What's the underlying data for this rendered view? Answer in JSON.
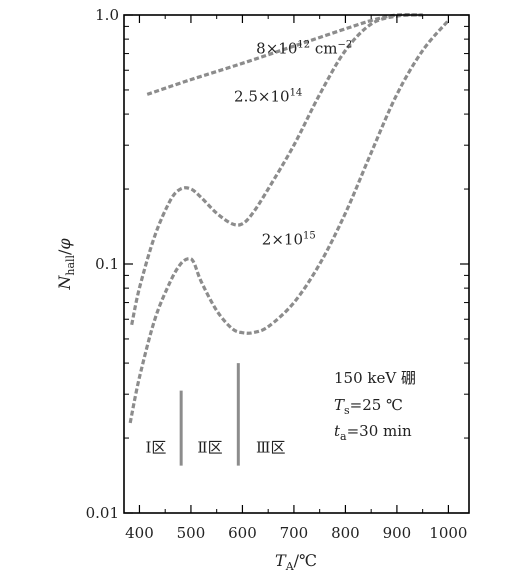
{
  "chart_data": {
    "type": "line",
    "xlabel": "T_A/℃",
    "ylabel": "N_hall/φ",
    "xlim": [
      370,
      1040
    ],
    "ylim": [
      0.01,
      1.0
    ],
    "yscale": "log",
    "xticks": [
      400,
      500,
      600,
      700,
      800,
      900,
      1000
    ],
    "xtick_labels": [
      "400",
      "500",
      "600",
      "700",
      "800",
      "900",
      "1000"
    ],
    "yticks": [
      0.01,
      0.1,
      1.0
    ],
    "ytick_labels": [
      "0.01",
      "0.1",
      "1.0"
    ],
    "grid": false,
    "series": [
      {
        "name": "8×10¹² cm⁻²",
        "x": [
          415,
          500,
          600,
          700,
          800,
          850,
          900,
          950
        ],
        "y": [
          0.48,
          0.55,
          0.64,
          0.75,
          0.88,
          0.95,
          1.0,
          1.0
        ]
      },
      {
        "name": "2.5×10¹⁴",
        "x": [
          385,
          400,
          430,
          460,
          480,
          500,
          520,
          550,
          580,
          600,
          620,
          650,
          700,
          750,
          800,
          850,
          900,
          950
        ],
        "y": [
          0.057,
          0.08,
          0.13,
          0.18,
          0.2,
          0.2,
          0.185,
          0.16,
          0.145,
          0.145,
          0.16,
          0.2,
          0.3,
          0.48,
          0.72,
          0.92,
          0.99,
          1.0
        ]
      },
      {
        "name": "2×10¹⁵",
        "x": [
          382,
          400,
          430,
          460,
          480,
          495,
          505,
          520,
          550,
          580,
          600,
          620,
          650,
          700,
          750,
          800,
          850,
          900,
          950,
          1000
        ],
        "y": [
          0.023,
          0.035,
          0.06,
          0.085,
          0.1,
          0.105,
          0.102,
          0.085,
          0.065,
          0.055,
          0.053,
          0.053,
          0.056,
          0.07,
          0.1,
          0.16,
          0.28,
          0.48,
          0.72,
          0.95
        ]
      }
    ],
    "series_labels": [
      {
        "text": "8×10",
        "sup": "12",
        "tail": " cm",
        "tail_sup": "−2",
        "x": 720,
        "y": 0.7
      },
      {
        "text": "2.5×10",
        "sup": "14",
        "tail": "",
        "tail_sup": "",
        "x": 650,
        "y": 0.45
      },
      {
        "text": "2×10",
        "sup": "15",
        "tail": "",
        "tail_sup": "",
        "x": 690,
        "y": 0.12
      }
    ],
    "region_markers": [
      {
        "x": 481,
        "y_top": 0.031,
        "y_bottom": 0.0155
      },
      {
        "x": 592,
        "y_top": 0.04,
        "y_bottom": 0.0155
      }
    ],
    "regions": [
      {
        "label": "Ⅰ区",
        "x": 432
      },
      {
        "label": "Ⅱ区",
        "x": 537
      },
      {
        "label": "Ⅲ区",
        "x": 655
      }
    ],
    "region_y": 0.0175,
    "info": {
      "line1": "150 keV 硼",
      "line2_var": "T",
      "line2_sub": "s",
      "line2_val": "=25 ℃",
      "line3_var": "t",
      "line3_sub": "a",
      "line3_val": "=30 min"
    }
  }
}
